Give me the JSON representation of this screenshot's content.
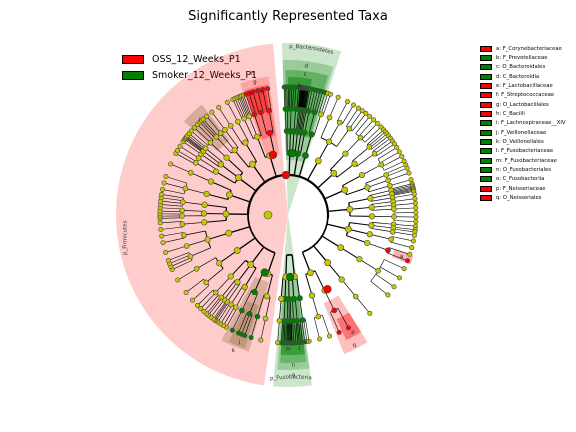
{
  "title": "Significantly Represented Taxa",
  "groups": [
    {
      "name": "OSS_12_Weeks_P1",
      "color": "#ff0000"
    },
    {
      "name": "Smoker_12_Weeks_P1",
      "color": "#008000"
    }
  ],
  "taxa": [
    {
      "label": "a: F_Corynebacteriaceae",
      "group": 0
    },
    {
      "label": "b: F_Prevotellaceae",
      "group": 1
    },
    {
      "label": "c: O_Bacteroidales",
      "group": 1
    },
    {
      "label": "d: C_Bacteroidia",
      "group": 1
    },
    {
      "label": "e: F_Lactobacillaceae",
      "group": 0
    },
    {
      "label": "f: F_Streptococcaceae",
      "group": 0
    },
    {
      "label": "g: O_Lactobacillales",
      "group": 0
    },
    {
      "label": "h: C_Bacilli",
      "group": 0
    },
    {
      "label": "i: F_Lachnospiraceae__XIV",
      "group": 1
    },
    {
      "label": "j: F_Veillonellaceae",
      "group": 1
    },
    {
      "label": "k: O_Veillonellales",
      "group": 1
    },
    {
      "label": "l: F_Fusobacteriaceae",
      "group": 1
    },
    {
      "label": "m: F_Fusobacteriaceae",
      "group": 1
    },
    {
      "label": "n: O_Fusobacteriales",
      "group": 1
    },
    {
      "label": "o: C_Fusobacteriia",
      "group": 1
    },
    {
      "label": "p: F_Neisseriaceae",
      "group": 0
    },
    {
      "label": "q: O_Neisseriales",
      "group": 0
    }
  ],
  "phyla": [
    {
      "label": "p_Firmicutes",
      "group": 0
    },
    {
      "label": "p_Bacteroidetes",
      "group": 1
    },
    {
      "label": "p_Fusobacteria",
      "group": 1
    }
  ],
  "sector_letters": [
    "a",
    "b",
    "c",
    "d",
    "e",
    "f",
    "g",
    "h",
    "i",
    "j",
    "k",
    "l",
    "m",
    "n",
    "o",
    "p",
    "q"
  ],
  "colors": {
    "oss": "#ff0000",
    "smoker": "#008000",
    "node_default": "#c8c800",
    "sector_unlabeled": "#8b6b3a"
  }
}
